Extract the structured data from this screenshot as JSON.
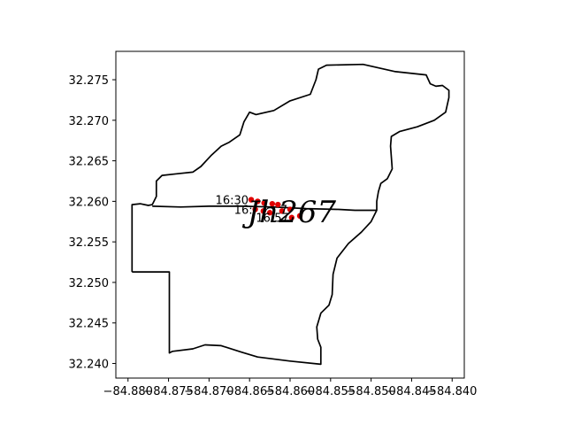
{
  "chart_data": {
    "type": "scatter",
    "title": "",
    "xlabel": "",
    "ylabel": "",
    "xlim": [
      -84.8815,
      -84.8385
    ],
    "ylim": [
      32.2382,
      32.2785
    ],
    "grid": false,
    "x_ticks": [
      -84.88,
      -84.875,
      -84.87,
      -84.865,
      -84.86,
      -84.855,
      -84.85,
      -84.845,
      -84.84
    ],
    "x_tick_labels": [
      "−84.880",
      "−84.875",
      "−84.870",
      "−84.865",
      "−84.860",
      "−84.855",
      "−84.850",
      "−84.845",
      "−84.840"
    ],
    "y_ticks": [
      32.24,
      32.245,
      32.25,
      32.255,
      32.26,
      32.265,
      32.27,
      32.275
    ],
    "y_tick_labels": [
      "32.240",
      "32.245",
      "32.250",
      "32.255",
      "32.260",
      "32.265",
      "32.270",
      "32.275"
    ],
    "boundary": [
      [
        -84.8795,
        32.2513
      ],
      [
        -84.8795,
        32.2596
      ],
      [
        -84.8785,
        32.2597
      ],
      [
        -84.8775,
        32.2595
      ],
      [
        -84.877,
        32.2596
      ],
      [
        -84.8765,
        32.2606
      ],
      [
        -84.8765,
        32.2625
      ],
      [
        -84.8758,
        32.2632
      ],
      [
        -84.874,
        32.2634
      ],
      [
        -84.872,
        32.2636
      ],
      [
        -84.871,
        32.2643
      ],
      [
        -84.8697,
        32.2657
      ],
      [
        -84.8685,
        32.2668
      ],
      [
        -84.8675,
        32.2673
      ],
      [
        -84.8662,
        32.2682
      ],
      [
        -84.8657,
        32.2698
      ],
      [
        -84.865,
        32.271
      ],
      [
        -84.8642,
        32.2707
      ],
      [
        -84.862,
        32.2712
      ],
      [
        -84.86,
        32.2724
      ],
      [
        -84.8575,
        32.2732
      ],
      [
        -84.8568,
        32.275
      ],
      [
        -84.8565,
        32.2763
      ],
      [
        -84.8555,
        32.2768
      ],
      [
        -84.851,
        32.2769
      ],
      [
        -84.847,
        32.276
      ],
      [
        -84.8432,
        32.2756
      ],
      [
        -84.8427,
        32.2745
      ],
      [
        -84.842,
        32.2742
      ],
      [
        -84.8412,
        32.2743
      ],
      [
        -84.8404,
        32.2737
      ],
      [
        -84.8404,
        32.2728
      ],
      [
        -84.8408,
        32.271
      ],
      [
        -84.8422,
        32.27
      ],
      [
        -84.8443,
        32.2692
      ],
      [
        -84.8465,
        32.2686
      ],
      [
        -84.8475,
        32.268
      ],
      [
        -84.8476,
        32.2668
      ],
      [
        -84.8474,
        32.264
      ],
      [
        -84.848,
        32.2628
      ],
      [
        -84.8488,
        32.2622
      ],
      [
        -84.8491,
        32.2612
      ],
      [
        -84.8493,
        32.26
      ],
      [
        -84.8493,
        32.2589
      ],
      [
        -84.85,
        32.2575
      ],
      [
        -84.8512,
        32.2562
      ],
      [
        -84.8528,
        32.2548
      ],
      [
        -84.8542,
        32.253
      ],
      [
        -84.8547,
        32.251
      ],
      [
        -84.8548,
        32.2485
      ],
      [
        -84.8552,
        32.2472
      ],
      [
        -84.8562,
        32.2462
      ],
      [
        -84.8567,
        32.2445
      ],
      [
        -84.8566,
        32.243
      ],
      [
        -84.8562,
        32.242
      ],
      [
        -84.8562,
        32.2399
      ],
      [
        -84.86,
        32.2403
      ],
      [
        -84.864,
        32.2408
      ],
      [
        -84.866,
        32.2414
      ],
      [
        -84.8685,
        32.2422
      ],
      [
        -84.8705,
        32.2423
      ],
      [
        -84.872,
        32.2418
      ],
      [
        -84.8745,
        32.2415
      ],
      [
        -84.8749,
        32.2413
      ],
      [
        -84.8749,
        32.244
      ],
      [
        -84.8749,
        32.248
      ],
      [
        -84.8749,
        32.2513
      ],
      [
        -84.8795,
        32.2513
      ]
    ],
    "road": [
      [
        -84.877,
        32.2594
      ],
      [
        -84.8735,
        32.2593
      ],
      [
        -84.87,
        32.2594
      ],
      [
        -84.866,
        32.2594
      ],
      [
        -84.862,
        32.2593
      ],
      [
        -84.858,
        32.2591
      ],
      [
        -84.854,
        32.259
      ],
      [
        -84.852,
        32.2589
      ],
      [
        -84.8493,
        32.2589
      ]
    ],
    "points": [
      {
        "x": -84.8648,
        "y": 32.2602,
        "label": "16:30"
      },
      {
        "x": -84.864,
        "y": 32.26,
        "label": ""
      },
      {
        "x": -84.8632,
        "y": 32.2598,
        "label": ""
      },
      {
        "x": -84.8622,
        "y": 32.2597,
        "label": ""
      },
      {
        "x": -84.8615,
        "y": 32.2596,
        "label": ""
      },
      {
        "x": -84.8643,
        "y": 32.259,
        "label": "16:"
      },
      {
        "x": -84.8633,
        "y": 32.2588,
        "label": ""
      },
      {
        "x": -84.8625,
        "y": 32.2586,
        "label": ""
      },
      {
        "x": -84.861,
        "y": 32.2588,
        "label": ""
      },
      {
        "x": -84.86,
        "y": 32.259,
        "label": "7"
      },
      {
        "x": -84.8598,
        "y": 32.258,
        "label": "16:57"
      },
      {
        "x": -84.8588,
        "y": 32.2582,
        "label": ""
      }
    ],
    "large_label": {
      "text": "Jh267",
      "x": -84.8598,
      "y": 32.2585
    }
  }
}
